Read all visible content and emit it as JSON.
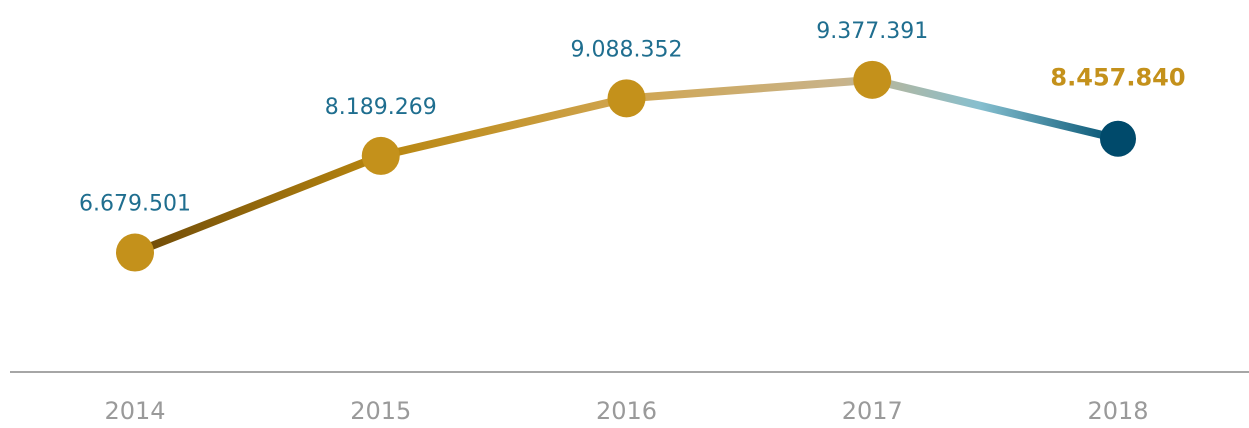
{
  "chart_data": {
    "type": "line",
    "categories": [
      "2014",
      "2015",
      "2016",
      "2017",
      "2018"
    ],
    "values": [
      6679501,
      8189269,
      9088352,
      9377391,
      8457840
    ],
    "value_labels": [
      "6.679.501",
      "8.189.269",
      "9.088.352",
      "9.377.391",
      "8.457.840"
    ],
    "ylim": [
      5000000,
      10000000
    ]
  }
}
